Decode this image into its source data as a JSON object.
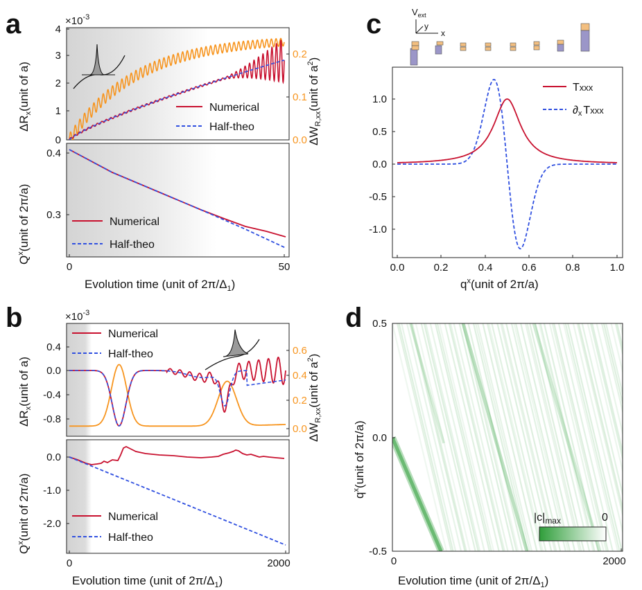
{
  "figure": {
    "panels": [
      {
        "id": "a",
        "label": "a",
        "top": {
          "ylabel": "ΔR",
          "ylabel_sub": "x",
          "ylabel_rest": "(unit of a)",
          "multiplier": "×10",
          "multiplier_exp": "-3",
          "ylabel_right": "ΔW",
          "ylabel_right_sub": "R,xx",
          "ylabel_right_rest": "(unit of a",
          "ylabel_right_sup": "2",
          "ylabel_right_end": ")",
          "yticks": [
            "0",
            "1",
            "2",
            "3",
            "4"
          ],
          "yticks_right": [
            "0.0",
            "0.1",
            "0.2"
          ],
          "legend": [
            "Numerical",
            "Half-theo"
          ]
        },
        "bottom": {
          "ylabel": "Q",
          "ylabel_sup": "x",
          "ylabel_rest": "(unit of 2π/a)",
          "yticks": [
            "0.3",
            "0.4"
          ],
          "legend": [
            "Numerical",
            "Half-theo"
          ]
        },
        "xlabel": "Evolution time (unit of 2π/Δ",
        "xlabel_sub": "1",
        "xlabel_end": ")",
        "xticks": [
          "0",
          "50"
        ]
      },
      {
        "id": "b",
        "label": "b",
        "top": {
          "ylabel": "ΔR",
          "ylabel_sub": "x",
          "ylabel_rest": "(unit of a)",
          "multiplier": "×10",
          "multiplier_exp": "-3",
          "ylabel_right": "ΔW",
          "ylabel_right_sub": "R,xx",
          "ylabel_right_rest": "(unit of a",
          "ylabel_right_sup": "2",
          "ylabel_right_end": ")",
          "yticks": [
            "0.4",
            "0.0",
            "-0.4",
            "-0.8"
          ],
          "yticks_right": [
            "0.0",
            "0.2",
            "0.4",
            "0.6"
          ],
          "legend": [
            "Numerical",
            "Half-theo"
          ]
        },
        "bottom": {
          "ylabel": "Q",
          "ylabel_sup": "x",
          "ylabel_rest": "(unit of 2π/a)",
          "yticks": [
            "0.0",
            "-1.0",
            "-2.0"
          ],
          "legend": [
            "Numerical",
            "Half-theo"
          ]
        },
        "xlabel": "Evolution time (unit of 2π/Δ",
        "xlabel_sub": "1",
        "xlabel_end": ")",
        "xticks": [
          "0",
          "2000"
        ]
      },
      {
        "id": "c",
        "label": "c",
        "inset_labels": {
          "v": "V",
          "v_sub": "ext",
          "y": "y",
          "x": "x"
        },
        "yticks": [
          "1.0",
          "0.5",
          "0.0",
          "-0.5",
          "-1.0"
        ],
        "xticks": [
          "0.0",
          "0.2",
          "0.4",
          "0.6",
          "0.8",
          "1.0"
        ],
        "xlabel": "q",
        "xlabel_sup": "x",
        "xlabel_rest": "(unit of 2π/a)",
        "legend": [
          {
            "main": "T",
            "sub": "xxx"
          },
          {
            "main": "∂",
            "sub": "x",
            "tail": "T",
            "tail_sub": "xxx"
          }
        ]
      },
      {
        "id": "d",
        "label": "d",
        "yticks": [
          "0.5",
          "0.0",
          "-0.5"
        ],
        "xticks": [
          "0",
          "2000"
        ],
        "ylabel": "q",
        "ylabel_sup": "x",
        "ylabel_rest": "(unit of 2π/a)",
        "xlabel": "Evolution time (unit of 2π/Δ",
        "xlabel_sub": "1",
        "xlabel_end": ")",
        "colorbar": {
          "left": "|c|",
          "left_sub": "max",
          "right": "0"
        }
      }
    ]
  },
  "colors": {
    "numerical": "#c8102e",
    "half_theo": "#2f4fe0",
    "orange": "#f7941d",
    "green": "#2f9e3a",
    "shade": "#d9d9d9"
  },
  "chart_data": [
    {
      "type": "line",
      "panel": "a-top",
      "xlim": [
        0,
        50
      ],
      "ylim": [
        0,
        4
      ],
      "y_multiplier": "×10^-3",
      "series": [
        {
          "name": "Numerical",
          "x": [
            0,
            10,
            20,
            30,
            40,
            50
          ],
          "y": [
            0,
            0.8,
            1.5,
            2.1,
            2.6,
            2.95
          ]
        },
        {
          "name": "Half-theo",
          "x": [
            0,
            10,
            20,
            30,
            40,
            50
          ],
          "y": [
            0,
            0.8,
            1.5,
            2.1,
            2.6,
            2.95
          ]
        },
        {
          "x": [
            0,
            5,
            10,
            20,
            30,
            40,
            50
          ],
          "y": [
            0,
            0.05,
            0.1,
            0.17,
            0.21,
            0.225,
            0.23
          ],
          "axis": "right"
        }
      ],
      "right_ylim": [
        0,
        0.25
      ]
    },
    {
      "type": "line",
      "panel": "a-bottom",
      "xlim": [
        0,
        50
      ],
      "ylim": [
        0.23,
        0.41
      ],
      "series": [
        {
          "name": "Numerical",
          "x": [
            0,
            10,
            20,
            30,
            40,
            50
          ],
          "y": [
            0.405,
            0.37,
            0.336,
            0.304,
            0.28,
            0.262
          ]
        },
        {
          "name": "Half-theo",
          "x": [
            0,
            10,
            20,
            30,
            40,
            50
          ],
          "y": [
            0.405,
            0.37,
            0.336,
            0.303,
            0.272,
            0.24
          ]
        }
      ]
    },
    {
      "type": "line",
      "panel": "b-top",
      "xlim": [
        0,
        2000
      ],
      "ylim": [
        -1.0,
        0.6
      ],
      "y_multiplier": "×10^-3",
      "right_ylim": [
        -0.05,
        0.75
      ]
    },
    {
      "type": "line",
      "panel": "b-bottom",
      "xlim": [
        0,
        2000
      ],
      "ylim": [
        -2.7,
        0.4
      ],
      "series": [
        {
          "name": "Half-theo",
          "x": [
            0,
            2000
          ],
          "y": [
            0,
            -2.65
          ]
        }
      ]
    },
    {
      "type": "line",
      "panel": "c",
      "xlim": [
        0,
        1
      ],
      "ylim": [
        -1.4,
        1.4
      ],
      "series": [
        {
          "name": "Txxx",
          "x": [
            0.0,
            0.3,
            0.4,
            0.45,
            0.5,
            0.55,
            0.6,
            0.7,
            1.0
          ],
          "y": [
            0,
            0.06,
            0.45,
            0.85,
            1.0,
            0.85,
            0.45,
            0.06,
            0
          ]
        },
        {
          "name": "∂x Txxx",
          "x": [
            0.0,
            0.3,
            0.445,
            0.5,
            0.555,
            0.7,
            1.0
          ],
          "y": [
            0,
            0.1,
            1.3,
            0,
            -1.3,
            -0.1,
            0
          ]
        }
      ]
    },
    {
      "type": "heatmap",
      "panel": "d",
      "xlim": [
        0,
        2000
      ],
      "ylim": [
        -0.5,
        0.5
      ]
    }
  ]
}
